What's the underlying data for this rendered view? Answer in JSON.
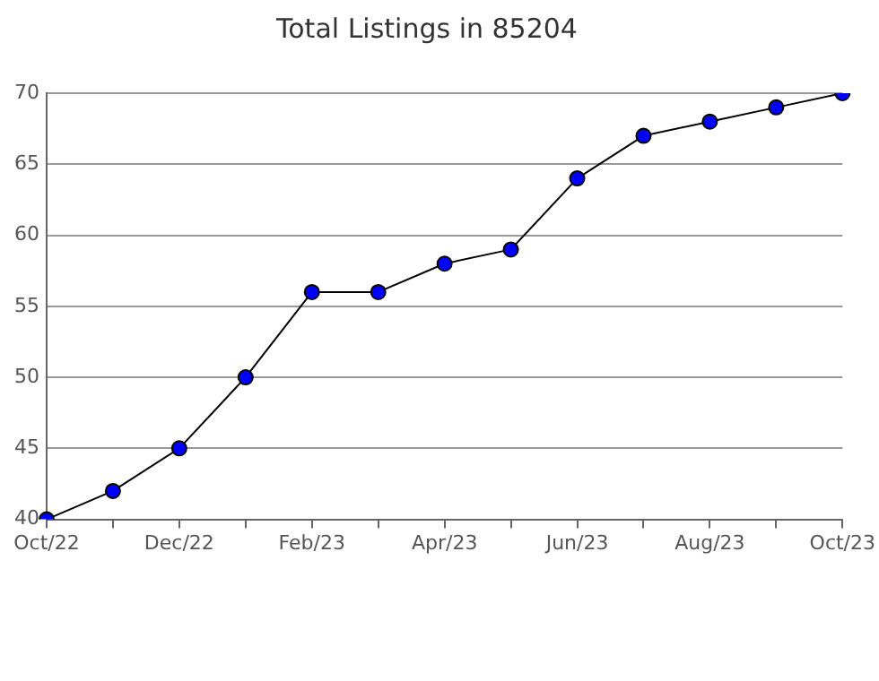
{
  "chart_data": {
    "type": "line",
    "title": "Total Listings in 85204",
    "categories": [
      "Oct/22",
      null,
      "Dec/22",
      null,
      "Feb/23",
      null,
      "Apr/23",
      null,
      "Jun/23",
      null,
      "Aug/23",
      null,
      "Oct/23"
    ],
    "series": [
      {
        "color": "#0000ff",
        "values": [
          40,
          42,
          45,
          50,
          56,
          56,
          58,
          59,
          64,
          67,
          68,
          69,
          70
        ]
      }
    ],
    "ylim": [
      40,
      70
    ],
    "yticks": [
      40,
      45,
      50,
      55,
      60,
      65,
      70
    ],
    "grid": "y",
    "legend": false,
    "marker": "circle",
    "line_style": "solid"
  }
}
